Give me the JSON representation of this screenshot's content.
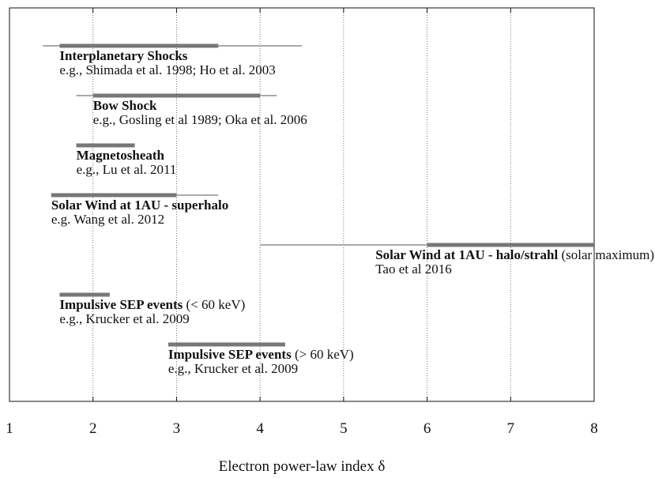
{
  "chart_data": {
    "type": "range",
    "xlabel": "Electron power-law index δ",
    "xlim": [
      1,
      8
    ],
    "xticks": [
      1,
      2,
      3,
      4,
      5,
      6,
      7,
      8
    ],
    "grid": true,
    "thin_color": "#aaaaaa",
    "thick_color": "#777777",
    "items": [
      {
        "name": "Interplanetary Shocks",
        "reference": "e.g., Shimada et al. 1998; Ho et al. 2003",
        "range": [
          1.4,
          4.5
        ],
        "typical": [
          1.6,
          3.5
        ]
      },
      {
        "name": "Bow Shock",
        "reference": "e.g., Gosling et al 1989; Oka et al. 2006",
        "range": [
          1.8,
          4.2
        ],
        "typical": [
          2.0,
          4.0
        ]
      },
      {
        "name": "Magnetosheath",
        "reference": "e.g., Lu et al. 2011",
        "typical": [
          1.8,
          2.5
        ]
      },
      {
        "name": "Solar Wind at 1AU - superhalo",
        "reference": "e.g. Wang et al. 2012",
        "range": [
          1.5,
          3.5
        ],
        "typical": [
          1.5,
          3.0
        ]
      },
      {
        "name": "Solar Wind at 1AU - halo/strahl",
        "note": " (solar maximum)",
        "reference": "Tao et al 2016",
        "range": [
          4.0,
          8.0
        ],
        "typical": [
          6.0,
          8.0
        ]
      },
      {
        "name": "Impulsive SEP events",
        "note": " (< 60 keV)",
        "reference": "e.g., Krucker et al. 2009",
        "typical": [
          1.6,
          2.2
        ]
      },
      {
        "name": "Impulsive SEP events",
        "note": " (> 60 keV)",
        "reference": "e.g., Krucker et al. 2009",
        "typical": [
          2.9,
          4.3
        ]
      }
    ]
  }
}
